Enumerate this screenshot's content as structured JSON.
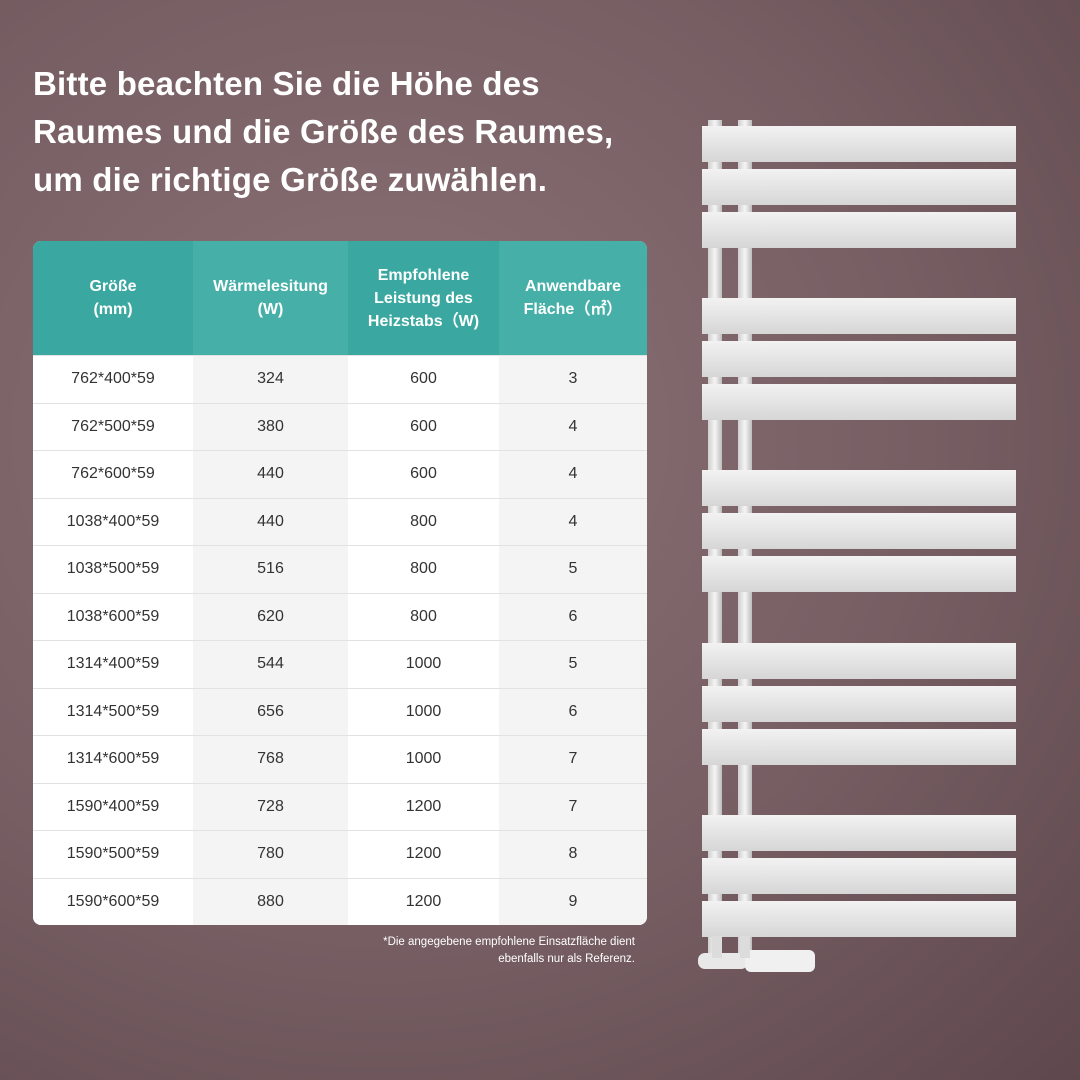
{
  "headline": "Bitte beachten Sie die Höhe des\nRaumes und die Größe des Raumes,\num die richtige Größe zuwählen.",
  "table": {
    "headers": [
      "Größe\n(mm)",
      "Wärmelesitung\n(W)",
      "Empfohlene\nLeistung des\nHeizstabs（W)",
      "Anwendbare\nFläche（㎡）"
    ],
    "rows": [
      [
        "762*400*59",
        "324",
        "600",
        "3"
      ],
      [
        "762*500*59",
        "380",
        "600",
        "4"
      ],
      [
        "762*600*59",
        "440",
        "600",
        "4"
      ],
      [
        "1038*400*59",
        "440",
        "800",
        "4"
      ],
      [
        "1038*500*59",
        "516",
        "800",
        "5"
      ],
      [
        "1038*600*59",
        "620",
        "800",
        "6"
      ],
      [
        "1314*400*59",
        "544",
        "1000",
        "5"
      ],
      [
        "1314*500*59",
        "656",
        "1000",
        "6"
      ],
      [
        "1314*600*59",
        "768",
        "1000",
        "7"
      ],
      [
        "1590*400*59",
        "728",
        "1200",
        "7"
      ],
      [
        "1590*500*59",
        "780",
        "1200",
        "8"
      ],
      [
        "1590*600*59",
        "880",
        "1200",
        "9"
      ]
    ]
  },
  "footnote": "*Die angegebene empfohlene Einsatzfläche dient\nebenfalls nur als Referenz."
}
